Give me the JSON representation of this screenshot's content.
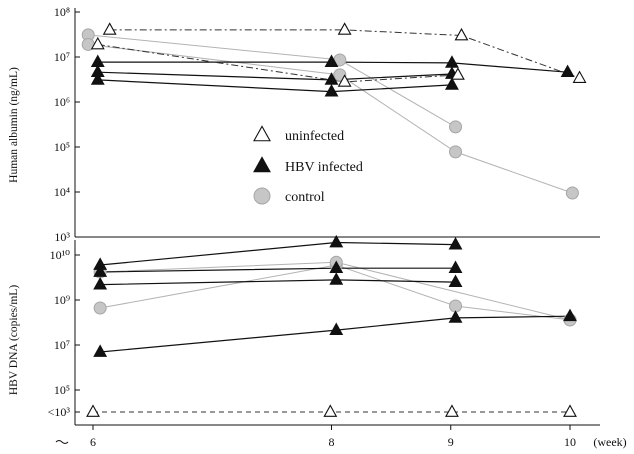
{
  "chart_data": [
    {
      "type": "line",
      "ylabel": "Human albumin (ng/mL)",
      "yscale": "log",
      "ylim": [
        1000,
        100000000
      ],
      "yticks": [
        {
          "value": 100000000,
          "label": "10⁸"
        },
        {
          "value": 10000000,
          "label": "10⁷"
        },
        {
          "value": 1000000,
          "label": "10⁶"
        },
        {
          "value": 100000,
          "label": "10⁵"
        },
        {
          "value": 10000,
          "label": "10⁴"
        },
        {
          "value": 1000,
          "label": "10³"
        }
      ],
      "series": [
        {
          "group": 0,
          "points": [
            [
              6.14,
              40000000
            ],
            [
              8.11,
              40000000
            ],
            [
              9.09,
              30000000
            ],
            [
              10.08,
              3400000
            ]
          ]
        },
        {
          "group": 0,
          "points": [
            [
              6.04,
              19000000
            ],
            [
              8.11,
              2800000
            ],
            [
              9.06,
              4000000
            ]
          ]
        },
        {
          "group": 1,
          "points": [
            [
              6.04,
              7700000
            ],
            [
              8.0,
              7700000
            ],
            [
              9.01,
              7400000
            ],
            [
              9.98,
              4600000
            ]
          ]
        },
        {
          "group": 1,
          "points": [
            [
              6.04,
              4600000
            ],
            [
              8.0,
              3100000
            ],
            [
              9.01,
              4200000
            ]
          ]
        },
        {
          "group": 1,
          "points": [
            [
              6.04,
              3100000
            ],
            [
              8.0,
              1700000
            ],
            [
              9.01,
              2400000
            ]
          ]
        },
        {
          "group": 2,
          "points": [
            [
              5.96,
              31000000
            ],
            [
              8.07,
              8600000
            ],
            [
              9.04,
              280000
            ]
          ]
        },
        {
          "group": 2,
          "points": [
            [
              5.96,
              19000000
            ],
            [
              8.07,
              4000000
            ],
            [
              9.04,
              78000
            ],
            [
              10.02,
              9500
            ]
          ]
        }
      ]
    },
    {
      "type": "line",
      "ylabel": "HBV DNA (copies/mL)",
      "yscale": "log",
      "ylim": [
        1000,
        20000000000
      ],
      "yticks": [
        {
          "value": 10000000000,
          "label": "10¹⁰"
        },
        {
          "value": 1000000000,
          "label": "10⁹"
        },
        {
          "value": 10000000,
          "label": "10⁷"
        },
        {
          "value": 100000,
          "label": "10⁵"
        },
        {
          "value": 1000,
          "label": "<10³"
        }
      ],
      "xlabel": "(week)",
      "xticks": [
        {
          "value": 6,
          "label": "6"
        },
        {
          "value": 8,
          "label": "8"
        },
        {
          "value": 9,
          "label": "9"
        },
        {
          "value": 10,
          "label": "10"
        }
      ],
      "series": [
        {
          "group": 2,
          "points": [
            [
              6.06,
              440000000
            ],
            [
              8.04,
              6000000000
            ],
            [
              9.04,
              540000000
            ],
            [
              10.0,
              130000000
            ]
          ]
        },
        {
          "group": 2,
          "points": [
            [
              6.06,
              4200000000
            ],
            [
              8.04,
              6900000000
            ],
            [
              10.0,
              130000000
            ]
          ]
        },
        {
          "group": 1,
          "points": [
            [
              6.06,
              6000000000
            ],
            [
              8.04,
              19000000000
            ],
            [
              9.04,
              17000000000
            ]
          ]
        },
        {
          "group": 1,
          "points": [
            [
              6.06,
              4200000000
            ],
            [
              8.04,
              5100000000
            ],
            [
              9.04,
              5100000000
            ]
          ]
        },
        {
          "group": 1,
          "points": [
            [
              6.06,
              2200000000
            ],
            [
              8.04,
              2800000000
            ],
            [
              9.04,
              2500000000
            ]
          ]
        },
        {
          "group": 1,
          "points": [
            [
              6.06,
              4900000
            ],
            [
              8.04,
              46000000
            ],
            [
              9.04,
              160000000
            ],
            [
              10.0,
              190000000
            ]
          ]
        },
        {
          "group": 0,
          "points": [
            [
              6.0,
              1000
            ],
            [
              7.99,
              1000
            ],
            [
              9.01,
              1000
            ],
            [
              10.0,
              1000
            ]
          ]
        }
      ]
    }
  ],
  "legend": {
    "placement": "center-left",
    "entries": [
      {
        "name": "uninfected",
        "marker": "open-triangle",
        "line": "dash-dot",
        "color": "#222222"
      },
      {
        "name": "HBV infected",
        "marker": "filled-triangle",
        "line": "solid",
        "color": "#111111"
      },
      {
        "name": "control",
        "marker": "gray-circle",
        "line": "solid",
        "color": "#b8b8b8"
      }
    ]
  }
}
